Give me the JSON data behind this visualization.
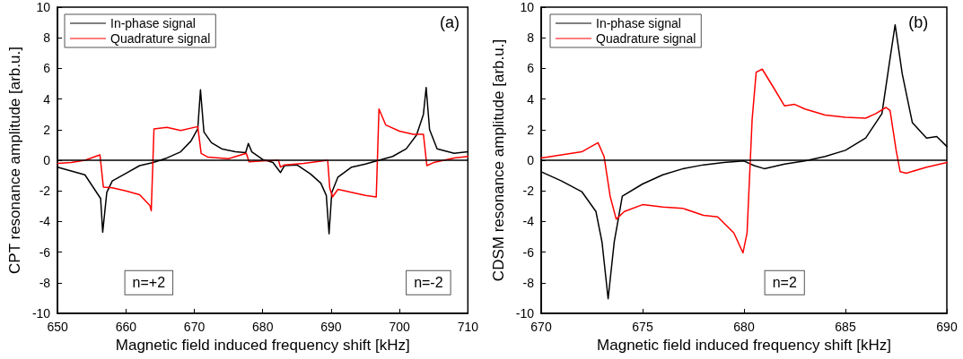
{
  "chart_data": [
    {
      "type": "line",
      "xlabel": "Magnetic field induced frequency shift [kHz]",
      "ylabel": "CPT resonance amplitude [arb.u.]",
      "annotations": [
        "(a)",
        "n=+2",
        "n=-2"
      ],
      "xlim": [
        650,
        710
      ],
      "xticks": [
        650,
        660,
        670,
        680,
        690,
        700,
        710
      ],
      "ylim": [
        -10,
        10
      ],
      "yticks": [
        -10,
        -8,
        -6,
        -4,
        -2,
        0,
        2,
        4,
        6,
        8,
        10
      ],
      "grid": false,
      "legend": "top left",
      "marker": "none",
      "line_style": "solid",
      "ref_lines": [
        {
          "axis": "y",
          "value": 0,
          "label": null,
          "color": "#000000"
        }
      ],
      "series": [
        {
          "name": "In-phase signal",
          "color": "#000000",
          "x": [
            650,
            654,
            656.3,
            656.6,
            657.2,
            658,
            660,
            662,
            664,
            666,
            668,
            669.5,
            670.5,
            670.9,
            671.4,
            672.5,
            674,
            676,
            677.5,
            677.9,
            678.4,
            680,
            681.5,
            682.6,
            683.2,
            685,
            687,
            688.5,
            689.3,
            689.7,
            690.1,
            691,
            693,
            695,
            697,
            699,
            701,
            702.5,
            703.5,
            703.9,
            704.4,
            705.5,
            708,
            710
          ],
          "values": [
            -0.45,
            -0.95,
            -2.5,
            -4.7,
            -2.1,
            -1.35,
            -0.85,
            -0.35,
            -0.15,
            0.15,
            0.55,
            1.25,
            2.05,
            4.6,
            1.85,
            1.15,
            0.75,
            0.55,
            0.5,
            1.1,
            0.55,
            0.05,
            -0.15,
            -0.8,
            -0.35,
            -0.3,
            -0.9,
            -1.5,
            -2.3,
            -4.8,
            -2.1,
            -1.1,
            -0.45,
            -0.25,
            0,
            0.25,
            0.75,
            1.65,
            3.0,
            4.75,
            2.0,
            0.75,
            0.45,
            0.55
          ]
        },
        {
          "name": "Quadrature signal",
          "color": "#ff0000",
          "x": [
            650,
            652,
            654,
            656.2,
            656.7,
            658,
            660,
            662,
            663.5,
            663.7,
            664.1,
            666,
            668,
            670.5,
            671,
            672,
            675,
            677.6,
            678,
            680,
            682.3,
            682.6,
            683.2,
            686,
            689.5,
            689.8,
            690.2,
            691,
            695,
            696.6,
            697,
            698,
            700,
            702,
            703.5,
            704,
            705,
            708,
            710
          ],
          "values": [
            -0.2,
            -0.15,
            0,
            0.35,
            -1.75,
            -1.8,
            -2.0,
            -2.25,
            -2.95,
            -3.3,
            2.05,
            2.15,
            1.95,
            2.2,
            0.45,
            0.2,
            0.1,
            0.45,
            -0.1,
            -0.05,
            0,
            -0.45,
            -0.3,
            -0.2,
            0,
            -1.8,
            -2.4,
            -1.9,
            -2.3,
            -2.4,
            3.35,
            2.3,
            1.9,
            1.7,
            1.7,
            -0.35,
            -0.15,
            0.15,
            0.25
          ]
        }
      ]
    },
    {
      "type": "line",
      "xlabel": "Magnetic field induced frequency shift [kHz]",
      "ylabel": "CDSM resonance amplitude [arb.u.]",
      "annotations": [
        "(b)",
        "n=2"
      ],
      "xlim": [
        670,
        690
      ],
      "xticks": [
        670,
        675,
        680,
        685,
        690
      ],
      "ylim": [
        -10,
        10
      ],
      "yticks": [
        -10,
        -8,
        -6,
        -4,
        -2,
        0,
        2,
        4,
        6,
        8,
        10
      ],
      "grid": false,
      "legend": "top left",
      "marker": "none",
      "line_style": "solid",
      "ref_lines": [
        {
          "axis": "y",
          "value": 0,
          "label": null,
          "color": "#000000"
        }
      ],
      "series": [
        {
          "name": "In-phase signal",
          "color": "#000000",
          "x": [
            670,
            671,
            672,
            672.7,
            673,
            673.3,
            673.6,
            674,
            675,
            676,
            677,
            678,
            679,
            680,
            680.5,
            681,
            682,
            683,
            684,
            685,
            686,
            686.8,
            687.2,
            687.45,
            687.8,
            688.3,
            689,
            689.5,
            690
          ],
          "values": [
            -0.75,
            -1.35,
            -2.05,
            -3.35,
            -5.35,
            -9.05,
            -5.35,
            -2.35,
            -1.55,
            -0.95,
            -0.55,
            -0.3,
            -0.15,
            -0.05,
            -0.35,
            -0.55,
            -0.25,
            -0.05,
            0.25,
            0.65,
            1.45,
            3.05,
            6.65,
            8.85,
            5.65,
            2.45,
            1.45,
            1.55,
            0.9
          ]
        },
        {
          "name": "Quadrature signal",
          "color": "#ff0000",
          "x": [
            670,
            671,
            672,
            672.8,
            673.1,
            673.4,
            673.7,
            674.1,
            675,
            676,
            677,
            678,
            678.7,
            679.5,
            679.95,
            680.15,
            680.4,
            680.6,
            680.9,
            681.5,
            682,
            682.5,
            683,
            684,
            685,
            686,
            686.5,
            687,
            687.2,
            687.5,
            687.7,
            688,
            689,
            690
          ],
          "values": [
            0.15,
            0.35,
            0.55,
            1.15,
            0.25,
            -2.35,
            -3.85,
            -3.35,
            -2.9,
            -3.05,
            -3.15,
            -3.6,
            -3.7,
            -4.75,
            -6.05,
            -4.75,
            2.65,
            5.75,
            5.95,
            4.65,
            3.55,
            3.65,
            3.35,
            2.95,
            2.8,
            2.75,
            3.05,
            3.45,
            3.25,
            0.65,
            -0.75,
            -0.85,
            -0.45,
            -0.15
          ]
        }
      ]
    }
  ]
}
